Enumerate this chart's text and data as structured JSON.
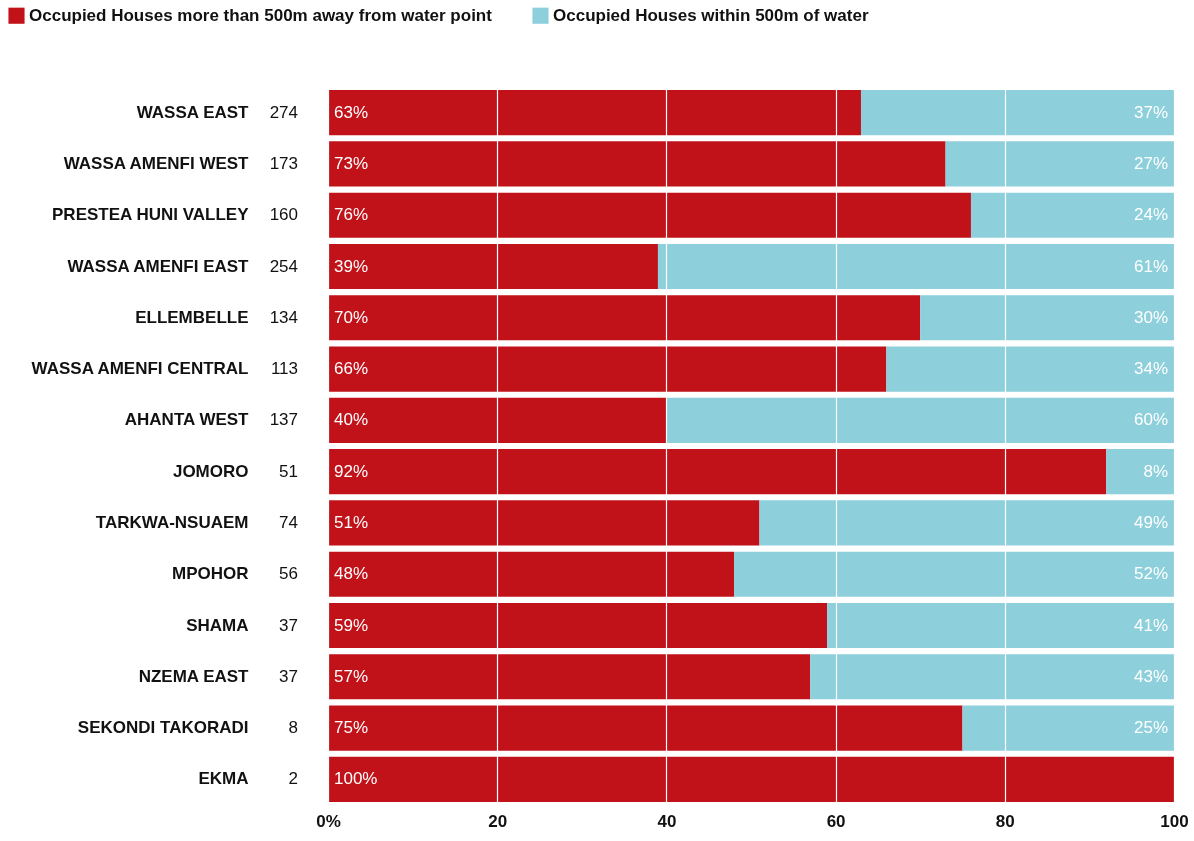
{
  "chart_data": {
    "type": "bar",
    "orientation": "horizontal",
    "stacked": true,
    "categories": [
      "WASSA EAST",
      "WASSA AMENFI WEST",
      "PRESTEA HUNI VALLEY",
      "WASSA AMENFI EAST",
      "ELLEMBELLE",
      "WASSA AMENFI CENTRAL",
      "AHANTA WEST",
      "JOMORO",
      "TARKWA-NSUAEM",
      "MPOHOR",
      "SHAMA",
      "NZEMA EAST",
      "SEKONDI TAKORADI",
      "EKMA"
    ],
    "series": [
      {
        "name": "Occupied Houses more than 500m away from water point",
        "color": "#c1121a",
        "values": [
          63,
          73,
          76,
          39,
          70,
          66,
          40,
          92,
          51,
          48,
          59,
          57,
          75,
          100
        ],
        "value_labels": [
          "63%",
          "73%",
          "76%",
          "39%",
          "70%",
          "66%",
          "40%",
          "92%",
          "51%",
          "48%",
          "59%",
          "57%",
          "75%",
          "100%"
        ]
      },
      {
        "name": "Occupied Houses within 500m of water",
        "color": "#8dcfdb",
        "values": [
          37,
          27,
          24,
          61,
          30,
          34,
          60,
          8,
          49,
          52,
          41,
          43,
          25,
          0
        ],
        "value_labels": [
          "37%",
          "27%",
          "24%",
          "61%",
          "30%",
          "34%",
          "60%",
          "8%",
          "49%",
          "52%",
          "41%",
          "43%",
          "25%",
          null
        ]
      }
    ],
    "annotations": [
      "274",
      "173",
      "160",
      "254",
      "134",
      "113",
      "137",
      "51",
      "74",
      "56",
      "37",
      "37",
      "8",
      "2"
    ],
    "xlim": [
      0,
      100
    ],
    "xticks": [
      {
        "value": 0,
        "label": "0%"
      },
      20,
      40,
      60,
      80,
      100
    ],
    "grid": "x",
    "legend": "top left"
  }
}
